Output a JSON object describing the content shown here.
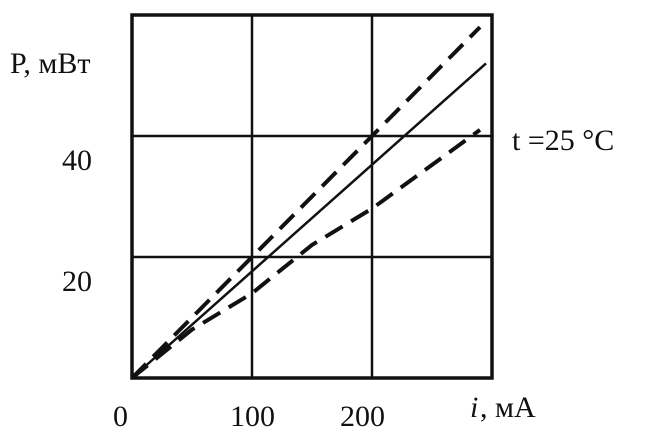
{
  "chart_data": {
    "type": "line",
    "title": "",
    "ylabel": "P,  мВт",
    "xlabel_var": "i",
    "xlabel_unit": ", мА",
    "annotation": "t =25  °C",
    "xlim": [
      0,
      300
    ],
    "ylim": [
      0,
      60
    ],
    "x_ticks": [
      {
        "value": 0,
        "label": "0"
      },
      {
        "value": 100,
        "label": "100"
      },
      {
        "value": 200,
        "label": "200"
      }
    ],
    "y_ticks": [
      {
        "value": 20,
        "label": "20"
      },
      {
        "value": 40,
        "label": "40"
      }
    ],
    "grid": true,
    "colors": {
      "line": "#111111",
      "grid": "#111111"
    },
    "series": [
      {
        "style": "dashed",
        "x": [
          0,
          290
        ],
        "y": [
          0,
          58
        ]
      },
      {
        "style": "solid",
        "x": [
          0,
          295
        ],
        "y": [
          0,
          52
        ]
      },
      {
        "style": "dashed",
        "x": [
          0,
          50,
          100,
          150,
          200,
          290
        ],
        "y": [
          0,
          8,
          14,
          22,
          28,
          41
        ]
      }
    ]
  }
}
